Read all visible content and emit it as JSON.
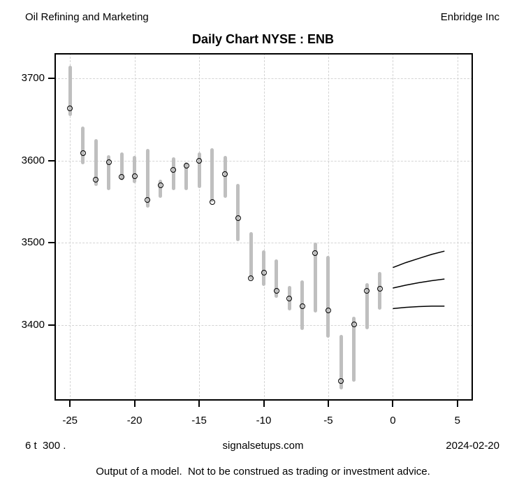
{
  "header": {
    "sector": "Oil Refining and Marketing",
    "company": "Enbridge Inc",
    "title": "Daily Chart NYSE : ENB"
  },
  "footer": {
    "left_code": "6 t  300 .",
    "site": "signalsetups.com",
    "date": "2024-02-20",
    "disclaimer": "Output of a model.  Not to be construed as trading or investment advice."
  },
  "colors": {
    "bar": "#bfbfbf",
    "grid": "#d4d4d4",
    "axis": "#000000",
    "point_stroke": "#000000",
    "forecast_line": "#000000",
    "background": "#ffffff"
  },
  "chart_data": {
    "type": "bar",
    "subtype": "high-low-close range bars with forecast fan",
    "title": "Daily Chart NYSE : ENB",
    "xlabel": "",
    "ylabel": "",
    "grid": true,
    "xlim": [
      -26.2,
      6.2
    ],
    "ylim": [
      3308,
      3731
    ],
    "x_ticks": [
      -25,
      -20,
      -15,
      -10,
      -5,
      0,
      5
    ],
    "y_ticks": [
      3400,
      3500,
      3600,
      3700
    ],
    "bars": [
      {
        "x": -25,
        "high": 3716,
        "low": 3654,
        "close": 3664
      },
      {
        "x": -24,
        "high": 3642,
        "low": 3596,
        "close": 3609
      },
      {
        "x": -23,
        "high": 3626,
        "low": 3569,
        "close": 3577
      },
      {
        "x": -22,
        "high": 3607,
        "low": 3564,
        "close": 3598
      },
      {
        "x": -21,
        "high": 3610,
        "low": 3576,
        "close": 3580
      },
      {
        "x": -20,
        "high": 3606,
        "low": 3573,
        "close": 3581
      },
      {
        "x": -19,
        "high": 3614,
        "low": 3543,
        "close": 3552
      },
      {
        "x": -18,
        "high": 3577,
        "low": 3555,
        "close": 3570
      },
      {
        "x": -17,
        "high": 3604,
        "low": 3564,
        "close": 3589
      },
      {
        "x": -16,
        "high": 3598,
        "low": 3564,
        "close": 3594
      },
      {
        "x": -15,
        "high": 3610,
        "low": 3567,
        "close": 3600
      },
      {
        "x": -14,
        "high": 3615,
        "low": 3550,
        "close": 3550
      },
      {
        "x": -13,
        "high": 3606,
        "low": 3555,
        "close": 3584
      },
      {
        "x": -12,
        "high": 3572,
        "low": 3502,
        "close": 3530
      },
      {
        "x": -11,
        "high": 3513,
        "low": 3455,
        "close": 3457
      },
      {
        "x": -10,
        "high": 3491,
        "low": 3448,
        "close": 3464
      },
      {
        "x": -9,
        "high": 3480,
        "low": 3433,
        "close": 3442
      },
      {
        "x": -8,
        "high": 3448,
        "low": 3418,
        "close": 3432
      },
      {
        "x": -7,
        "high": 3454,
        "low": 3394,
        "close": 3423
      },
      {
        "x": -6,
        "high": 3500,
        "low": 3415,
        "close": 3488
      },
      {
        "x": -5,
        "high": 3484,
        "low": 3385,
        "close": 3418
      },
      {
        "x": -4,
        "high": 3388,
        "low": 3322,
        "close": 3332
      },
      {
        "x": -3,
        "high": 3410,
        "low": 3331,
        "close": 3401
      },
      {
        "x": -2,
        "high": 3451,
        "low": 3395,
        "close": 3442
      },
      {
        "x": -1,
        "high": 3465,
        "low": 3419,
        "close": 3444
      }
    ],
    "forecast_lines": [
      {
        "name": "upper",
        "points": [
          [
            0,
            3470
          ],
          [
            1,
            3476
          ],
          [
            2,
            3481
          ],
          [
            3,
            3486
          ],
          [
            4,
            3490
          ]
        ]
      },
      {
        "name": "middle",
        "points": [
          [
            0,
            3445
          ],
          [
            1,
            3448.5
          ],
          [
            2,
            3451.5
          ],
          [
            3,
            3454
          ],
          [
            4,
            3456
          ]
        ]
      },
      {
        "name": "lower",
        "points": [
          [
            0,
            3420
          ],
          [
            1,
            3421.5
          ],
          [
            2,
            3422.5
          ],
          [
            3,
            3423
          ],
          [
            4,
            3423
          ]
        ]
      }
    ]
  }
}
